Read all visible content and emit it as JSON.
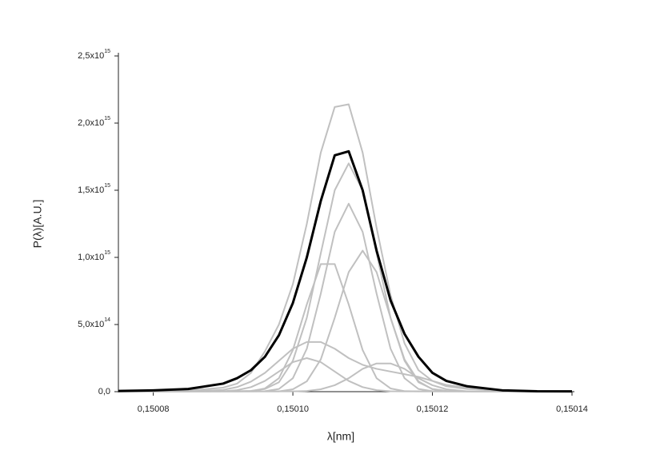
{
  "chart_data": {
    "type": "line",
    "xlabel": "λ[nm]",
    "ylabel": "P(λ)[A.U.]",
    "xlim": [
      0.150075,
      0.15014
    ],
    "xticks": [
      {
        "value": 0.15008,
        "label": "0,15008"
      },
      {
        "value": 0.1501,
        "label": "0,15010"
      },
      {
        "value": 0.15012,
        "label": "0,15012"
      },
      {
        "value": 0.15014,
        "label": "0,15014"
      }
    ],
    "ylim": [
      0,
      2500000000000000.0
    ],
    "yticks": [
      {
        "value": 0,
        "label": "0,0"
      },
      {
        "value": 500000000000000.0,
        "label": "5,0x10",
        "exponent": "14"
      },
      {
        "value": 1000000000000000.0,
        "label": "1,0x10",
        "exponent": "15"
      },
      {
        "value": 1500000000000000.0,
        "label": "1,5x10",
        "exponent": "15"
      },
      {
        "value": 2000000000000000.0,
        "label": "2,0x10",
        "exponent": "15"
      },
      {
        "value": 2500000000000000.0,
        "label": "2,5x10",
        "exponent": "15"
      }
    ],
    "x": [
      0.150075,
      0.15008,
      0.150085,
      0.15009,
      0.150092,
      0.150094,
      0.150096,
      0.150098,
      0.1501,
      0.150102,
      0.150104,
      0.150106,
      0.150108,
      0.15011,
      0.150112,
      0.150114,
      0.150116,
      0.150118,
      0.15012,
      0.150122,
      0.150125,
      0.15013,
      0.150135,
      0.15014
    ],
    "series": [
      {
        "color": "#c0c0c0",
        "values": [
          2000000000000.0,
          3000000000000.0,
          8000000000000.0,
          30000000000000.0,
          60000000000000.0,
          140000000000000.0,
          300000000000000.0,
          500000000000000.0,
          800000000000000.0,
          1250000000000000.0,
          1780000000000000.0,
          2120000000000000.0,
          2140000000000000.0,
          1780000000000000.0,
          1220000000000000.0,
          720000000000000.0,
          360000000000000.0,
          160000000000000.0,
          80000000000000.0,
          40000000000000.0,
          20000000000000.0,
          10000000000000.0,
          5000000000000.0,
          3000000000000.0
        ]
      },
      {
        "color": "#c0c0c0",
        "values": [
          2000000000000.0,
          2000000000000.0,
          2000000000000.0,
          3000000000000.0,
          4000000000000.0,
          6000000000000.0,
          20000000000000.0,
          70000000000000.0,
          230000000000000.0,
          550000000000000.0,
          1030000000000000.0,
          1500000000000000.0,
          1700000000000000.0,
          1500000000000000.0,
          1030000000000000.0,
          550000000000000.0,
          230000000000000.0,
          70000000000000.0,
          20000000000000.0,
          6000000000000.0,
          3000000000000.0,
          2000000000000.0,
          2000000000000.0,
          2000000000000.0
        ]
      },
      {
        "color": "#c0c0c0",
        "values": [
          2000000000000.0,
          2000000000000.0,
          2000000000000.0,
          2000000000000.0,
          2000000000000.0,
          2000000000000.0,
          4000000000000.0,
          20000000000000.0,
          100000000000000.0,
          320000000000000.0,
          730000000000000.0,
          1190000000000000.0,
          1400000000000000.0,
          1190000000000000.0,
          730000000000000.0,
          320000000000000.0,
          100000000000000.0,
          20000000000000.0,
          4000000000000.0,
          2000000000000.0,
          2000000000000.0,
          2000000000000.0,
          2000000000000.0,
          2000000000000.0
        ]
      },
      {
        "color": "#c0c0c0",
        "values": [
          2000000000000.0,
          2000000000000.0,
          2000000000000.0,
          2000000000000.0,
          2000000000000.0,
          2000000000000.0,
          2000000000000.0,
          2000000000000.0,
          18000000000000.0,
          77000000000000.0,
          240000000000000.0,
          550000000000000.0,
          890000000000000.0,
          1050000000000000.0,
          890000000000000.0,
          550000000000000.0,
          240000000000000.0,
          77000000000000.0,
          18000000000000.0,
          4000000000000.0,
          2000000000000.0,
          2000000000000.0,
          2000000000000.0,
          2000000000000.0
        ]
      },
      {
        "color": "#c0c0c0",
        "values": [
          2000000000000.0,
          2000000000000.0,
          2000000000000.0,
          2000000000000.0,
          2000000000000.0,
          4000000000000.0,
          24000000000000.0,
          100000000000000.0,
          310000000000000.0,
          650000000000000.0,
          950000000000000.0,
          950000000000000.0,
          650000000000000.0,
          310000000000000.0,
          100000000000000.0,
          24000000000000.0,
          4000000000000.0,
          2000000000000.0,
          2000000000000.0,
          2000000000000.0,
          2000000000000.0,
          2000000000000.0,
          2000000000000.0,
          2000000000000.0
        ]
      },
      {
        "color": "#c0c0c0",
        "values": [
          2000000000000.0,
          2000000000000.0,
          2000000000000.0,
          13000000000000.0,
          34000000000000.0,
          75000000000000.0,
          140000000000000.0,
          230000000000000.0,
          320000000000000.0,
          370000000000000.0,
          370000000000000.0,
          320000000000000.0,
          250000000000000.0,
          200000000000000.0,
          170000000000000.0,
          150000000000000.0,
          130000000000000.0,
          110000000000000.0,
          80000000000000.0,
          50000000000000.0,
          30000000000000.0,
          10000000000000.0,
          3000000000000.0,
          2000000000000.0
        ]
      },
      {
        "color": "#c0c0c0",
        "values": [
          2000000000000.0,
          2000000000000.0,
          2000000000000.0,
          3000000000000.0,
          11000000000000.0,
          34000000000000.0,
          80000000000000.0,
          150000000000000.0,
          220000000000000.0,
          250000000000000.0,
          220000000000000.0,
          150000000000000.0,
          80000000000000.0,
          34000000000000.0,
          11000000000000.0,
          3000000000000.0,
          2000000000000.0,
          2000000000000.0,
          2000000000000.0,
          2000000000000.0,
          2000000000000.0,
          2000000000000.0,
          2000000000000.0,
          2000000000000.0
        ]
      },
      {
        "color": "#c0c0c0",
        "values": [
          2000000000000.0,
          2000000000000.0,
          2000000000000.0,
          2000000000000.0,
          2000000000000.0,
          2000000000000.0,
          2000000000000.0,
          2000000000000.0,
          2000000000000.0,
          5000000000000.0,
          18000000000000.0,
          48000000000000.0,
          100000000000000.0,
          170000000000000.0,
          210000000000000.0,
          210000000000000.0,
          170000000000000.0,
          100000000000000.0,
          48000000000000.0,
          18000000000000.0,
          2000000000000.0,
          2000000000000.0,
          2000000000000.0,
          2000000000000.0
        ]
      },
      {
        "color": "#000000",
        "values": [
          5000000000000.0,
          10000000000000.0,
          20000000000000.0,
          60000000000000.0,
          100000000000000.0,
          160000000000000.0,
          260000000000000.0,
          420000000000000.0,
          660000000000000.0,
          1000000000000000.0,
          1420000000000000.0,
          1760000000000000.0,
          1790000000000000.0,
          1500000000000000.0,
          1050000000000000.0,
          680000000000000.0,
          430000000000000.0,
          260000000000000.0,
          140000000000000.0,
          80000000000000.0,
          40000000000000.0,
          10000000000000.0,
          3000000000000.0,
          2000000000000.0
        ]
      }
    ]
  }
}
